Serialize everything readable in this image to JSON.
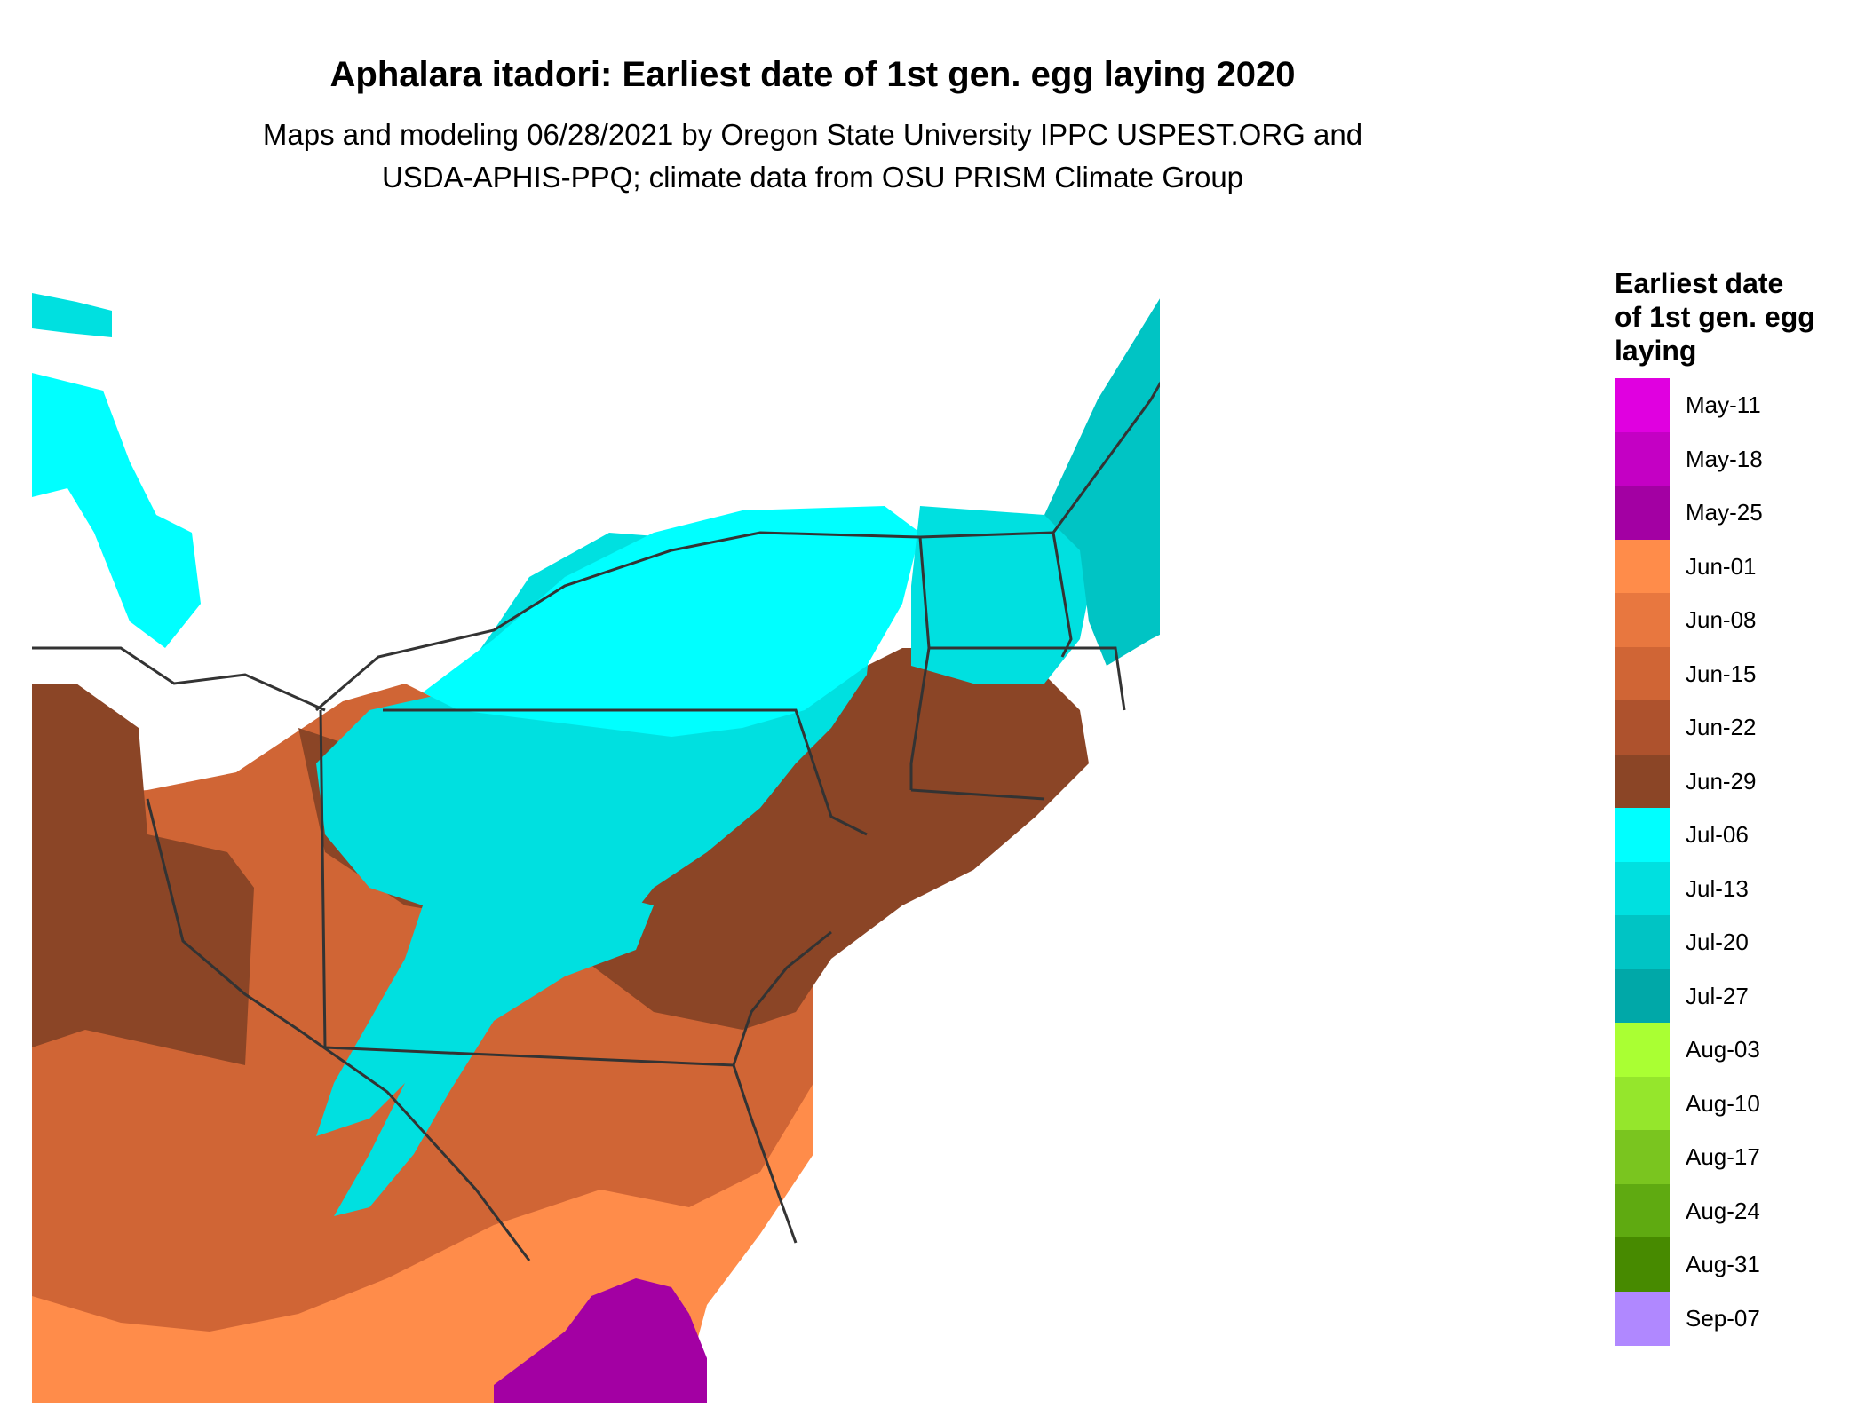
{
  "header": {
    "title": "Aphalara itadori: Earliest date of 1st gen. egg laying 2020",
    "subtitle_line1": "Maps and modeling 06/28/2021 by Oregon State University IPPC USPEST.ORG and",
    "subtitle_line2": "USDA-APHIS-PPQ; climate data from OSU PRISM Climate Group"
  },
  "legend": {
    "title_line1": "Earliest date",
    "title_line2": "of 1st gen. egg",
    "title_line3": "laying",
    "items": [
      {
        "label": "May-11",
        "color": "#e000e0"
      },
      {
        "label": "May-18",
        "color": "#c400c4"
      },
      {
        "label": "May-25",
        "color": "#a300a3"
      },
      {
        "label": "Jun-01",
        "color": "#ff8c4a"
      },
      {
        "label": "Jun-08",
        "color": "#e8773f"
      },
      {
        "label": "Jun-15",
        "color": "#d06535"
      },
      {
        "label": "Jun-22",
        "color": "#ae522d"
      },
      {
        "label": "Jun-29",
        "color": "#8b4526"
      },
      {
        "label": "Jul-06",
        "color": "#00ffff"
      },
      {
        "label": "Jul-13",
        "color": "#00e0e0"
      },
      {
        "label": "Jul-20",
        "color": "#00c4c4"
      },
      {
        "label": "Jul-27",
        "color": "#00a8a8"
      },
      {
        "label": "Aug-03",
        "color": "#aaff33"
      },
      {
        "label": "Aug-10",
        "color": "#95e62c"
      },
      {
        "label": "Aug-17",
        "color": "#7ac51f"
      },
      {
        "label": "Aug-24",
        "color": "#5faa11"
      },
      {
        "label": "Aug-31",
        "color": "#478a00"
      },
      {
        "label": "Sep-07",
        "color": "#b088ff"
      }
    ]
  }
}
